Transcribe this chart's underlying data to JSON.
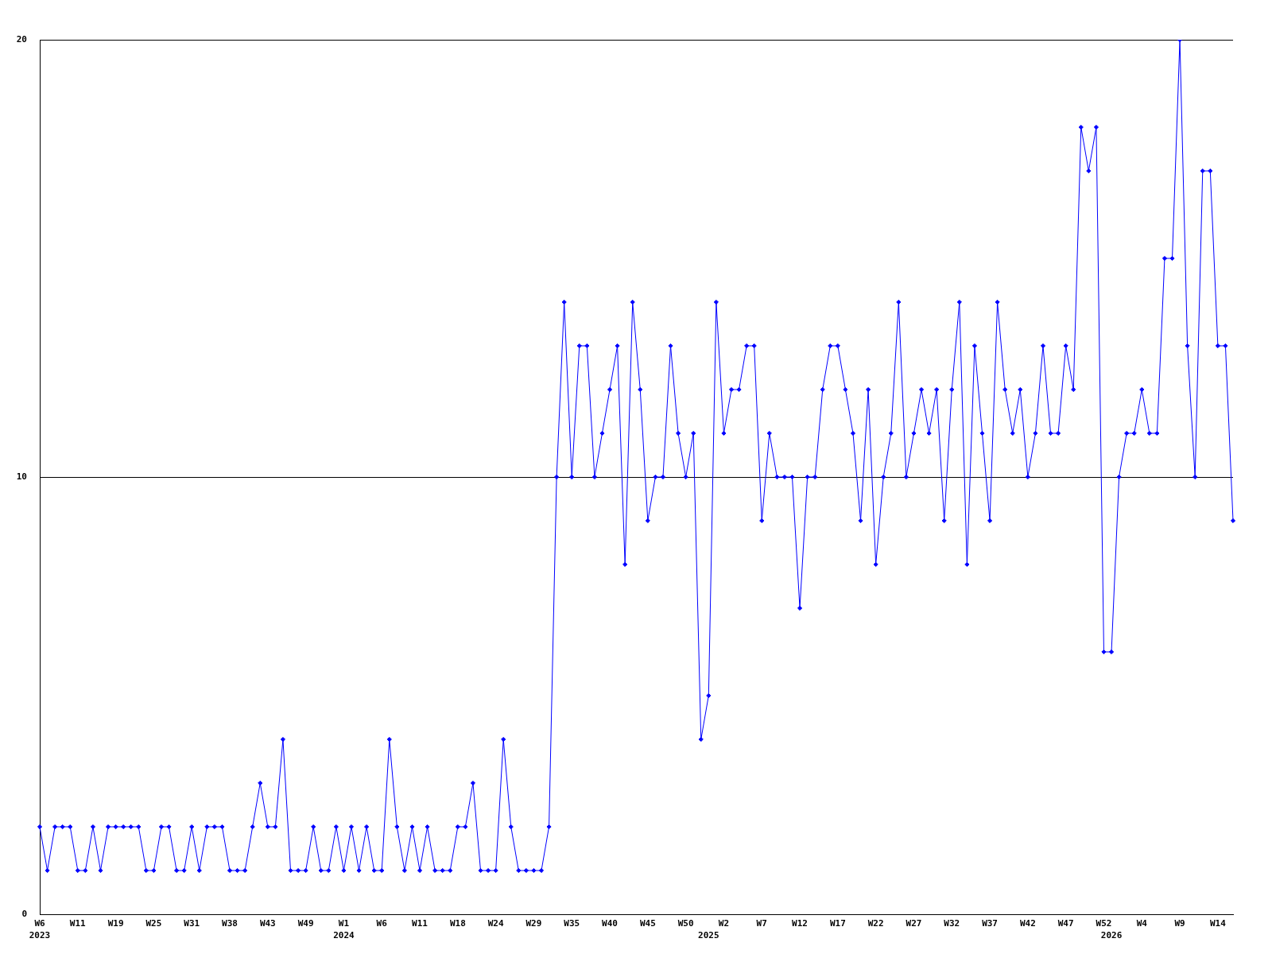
{
  "chart_data": {
    "type": "line",
    "color": "#0000ff",
    "marker": "diamond",
    "grid": "y",
    "ylim": [
      0,
      20
    ],
    "yticks": [
      0,
      10,
      20
    ],
    "categories": [
      "W6\n2023",
      null,
      null,
      null,
      null,
      "W11",
      null,
      null,
      null,
      null,
      "W19",
      null,
      null,
      null,
      null,
      "W25",
      null,
      null,
      null,
      null,
      "W31",
      null,
      null,
      null,
      null,
      "W38",
      null,
      null,
      null,
      null,
      "W43",
      null,
      null,
      null,
      null,
      "W49",
      null,
      null,
      null,
      null,
      "W1\n2024",
      null,
      null,
      null,
      null,
      "W6",
      null,
      null,
      null,
      null,
      "W11",
      null,
      null,
      null,
      null,
      "W18",
      null,
      null,
      null,
      null,
      "W24",
      null,
      null,
      null,
      null,
      "W29",
      null,
      null,
      null,
      null,
      "W35",
      null,
      null,
      null,
      null,
      "W40",
      null,
      null,
      null,
      null,
      "W45",
      null,
      null,
      null,
      null,
      "W50",
      null,
      null,
      "\n2025",
      null,
      "W2",
      null,
      null,
      null,
      null,
      "W7",
      null,
      null,
      null,
      null,
      "W12",
      null,
      null,
      null,
      null,
      "W17",
      null,
      null,
      null,
      null,
      "W22",
      null,
      null,
      null,
      null,
      "W27",
      null,
      null,
      null,
      null,
      "W32",
      null,
      null,
      null,
      null,
      "W37",
      null,
      null,
      null,
      null,
      "W42",
      null,
      null,
      null,
      null,
      "W47",
      null,
      null,
      null,
      null,
      "W52",
      "\n2026",
      null,
      null,
      null,
      "W4",
      null,
      null,
      null,
      null,
      "W9",
      null,
      null,
      null,
      null,
      "W14",
      null,
      null
    ],
    "values": [
      2,
      1,
      2,
      2,
      2,
      1,
      1,
      2,
      1,
      2,
      2,
      2,
      2,
      2,
      1,
      1,
      2,
      2,
      1,
      1,
      2,
      1,
      2,
      2,
      2,
      1,
      1,
      1,
      2,
      3,
      2,
      2,
      4,
      1,
      1,
      1,
      2,
      1,
      1,
      2,
      1,
      2,
      1,
      2,
      1,
      1,
      4,
      2,
      1,
      2,
      1,
      2,
      1,
      1,
      1,
      2,
      2,
      3,
      1,
      1,
      1,
      4,
      2,
      1,
      1,
      1,
      1,
      2,
      10,
      14,
      10,
      13,
      13,
      10,
      11,
      12,
      13,
      8,
      14,
      12,
      9,
      10,
      10,
      13,
      11,
      10,
      11,
      4,
      5,
      14,
      11,
      12,
      12,
      13,
      13,
      9,
      11,
      10,
      10,
      10,
      7,
      10,
      10,
      12,
      13,
      13,
      12,
      11,
      9,
      12,
      8,
      10,
      11,
      14,
      10,
      11,
      12,
      11,
      12,
      9,
      12,
      14,
      8,
      13,
      11,
      9,
      14,
      12,
      11,
      12,
      10,
      11,
      13,
      11,
      11,
      13,
      12,
      18,
      17,
      18,
      6,
      6,
      10,
      11,
      11,
      12,
      11,
      11,
      15,
      15,
      20,
      13,
      10,
      17,
      17,
      13,
      13,
      9
    ]
  }
}
